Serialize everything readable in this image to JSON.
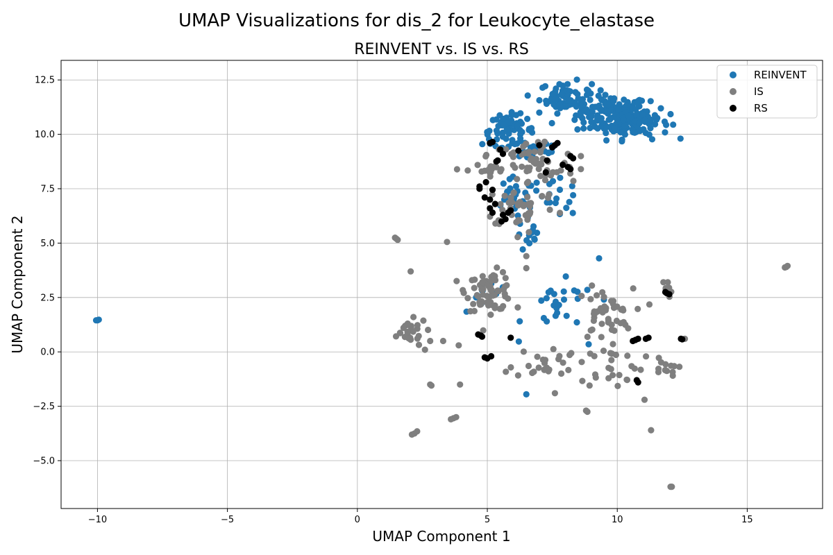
{
  "chart_data": {
    "type": "scatter",
    "suptitle": "UMAP Visualizations for dis_2 for Leukocyte_elastase",
    "title": "REINVENT vs. IS vs. RS",
    "xlabel": "UMAP Component 1",
    "ylabel": "UMAP Component 2",
    "xlim": [
      -11.4,
      17.9
    ],
    "ylim": [
      -7.2,
      13.4
    ],
    "xticks": [
      -10,
      -5,
      0,
      5,
      10,
      15
    ],
    "xtick_labels": [
      "−10",
      "−5",
      "0",
      "5",
      "10",
      "15"
    ],
    "yticks": [
      -5.0,
      -2.5,
      0.0,
      2.5,
      5.0,
      7.5,
      10.0,
      12.5
    ],
    "ytick_labels": [
      "−5.0",
      "−2.5",
      "0.0",
      "2.5",
      "5.0",
      "7.5",
      "10.0",
      "12.5"
    ],
    "grid": true,
    "legend_position": "top-right",
    "series": [
      {
        "name": "REINVENT",
        "color": "#1f77b4",
        "clusters": [
          {
            "cx": 9.8,
            "cy": 10.9,
            "sx": 0.7,
            "sy": 0.45,
            "n": 140
          },
          {
            "cx": 10.8,
            "cy": 10.6,
            "sx": 0.6,
            "sy": 0.4,
            "n": 80
          },
          {
            "cx": 8.0,
            "cy": 11.7,
            "sx": 0.5,
            "sy": 0.35,
            "n": 60
          },
          {
            "cx": 5.8,
            "cy": 10.2,
            "sx": 0.5,
            "sy": 0.35,
            "n": 60
          },
          {
            "cx": 6.8,
            "cy": 9.4,
            "sx": 0.6,
            "sy": 0.4,
            "n": 30
          },
          {
            "cx": 6.1,
            "cy": 7.0,
            "sx": 0.5,
            "sy": 0.5,
            "n": 30
          },
          {
            "cx": 6.6,
            "cy": 5.3,
            "sx": 0.25,
            "sy": 0.4,
            "n": 12
          },
          {
            "cx": 7.7,
            "cy": 7.0,
            "sx": 0.4,
            "sy": 0.4,
            "n": 15
          },
          {
            "cx": 7.8,
            "cy": 2.0,
            "sx": 0.7,
            "sy": 0.6,
            "n": 25
          },
          {
            "cx": 5.2,
            "cy": 2.9,
            "sx": 0.4,
            "sy": 0.4,
            "n": 10
          }
        ],
        "points": [
          [
            -10.0,
            1.45
          ],
          [
            -10.05,
            1.45
          ],
          [
            -9.95,
            1.48
          ],
          [
            9.3,
            4.3
          ],
          [
            6.5,
            -1.95
          ],
          [
            8.3,
            7.2
          ],
          [
            7.0,
            11.0
          ],
          [
            4.2,
            1.85
          ],
          [
            8.9,
            0.35
          ],
          [
            7.8,
            8.0
          ]
        ]
      },
      {
        "name": "IS",
        "color": "#7f7f7f",
        "clusters": [
          {
            "cx": 5.1,
            "cy": 2.8,
            "sx": 0.45,
            "sy": 0.45,
            "n": 70
          },
          {
            "cx": 9.5,
            "cy": 1.7,
            "sx": 0.55,
            "sy": 0.6,
            "n": 45
          },
          {
            "cx": 6.8,
            "cy": 8.5,
            "sx": 0.8,
            "sy": 0.7,
            "n": 55
          },
          {
            "cx": 6.3,
            "cy": 6.7,
            "sx": 0.7,
            "sy": 0.5,
            "n": 40
          },
          {
            "cx": 5.0,
            "cy": 8.3,
            "sx": 0.4,
            "sy": 0.4,
            "n": 15
          },
          {
            "cx": 7.2,
            "cy": -0.5,
            "sx": 0.6,
            "sy": 0.35,
            "n": 25
          },
          {
            "cx": 9.8,
            "cy": -0.6,
            "sx": 0.6,
            "sy": 0.5,
            "n": 25
          },
          {
            "cx": 1.9,
            "cy": 0.9,
            "sx": 0.4,
            "sy": 0.3,
            "n": 25
          },
          {
            "cx": 11.8,
            "cy": -0.8,
            "sx": 0.25,
            "sy": 0.3,
            "n": 12
          },
          {
            "cx": 11.9,
            "cy": 2.9,
            "sx": 0.1,
            "sy": 0.2,
            "n": 10
          }
        ],
        "points": [
          [
            1.45,
            5.25
          ],
          [
            1.5,
            5.2
          ],
          [
            1.55,
            5.15
          ],
          [
            3.45,
            5.05
          ],
          [
            2.05,
            3.7
          ],
          [
            2.2,
            -3.75
          ],
          [
            2.1,
            -3.8
          ],
          [
            2.3,
            -3.65
          ],
          [
            3.7,
            -3.05
          ],
          [
            3.8,
            -3.0
          ],
          [
            3.6,
            -3.1
          ],
          [
            3.95,
            -1.5
          ],
          [
            2.8,
            -1.5
          ],
          [
            2.85,
            -1.55
          ],
          [
            16.5,
            3.9
          ],
          [
            16.45,
            3.88
          ],
          [
            16.55,
            3.95
          ],
          [
            12.1,
            -6.2
          ],
          [
            12.05,
            -6.2
          ],
          [
            11.3,
            -3.6
          ],
          [
            11.05,
            -2.2
          ],
          [
            8.8,
            -2.7
          ],
          [
            8.85,
            -2.75
          ],
          [
            7.6,
            -1.9
          ],
          [
            3.3,
            0.5
          ],
          [
            2.8,
            0.5
          ],
          [
            3.9,
            0.3
          ],
          [
            2.6,
            0.1
          ],
          [
            12.6,
            0.6
          ],
          [
            6.5,
            3.85
          ],
          [
            6.5,
            4.4
          ],
          [
            8.6,
            8.4
          ],
          [
            8.6,
            9.0
          ],
          [
            6.6,
            5.5
          ]
        ]
      },
      {
        "name": "RS",
        "color": "#000000",
        "points": [
          [
            5.1,
            9.6
          ],
          [
            5.2,
            9.65
          ],
          [
            5.5,
            9.3
          ],
          [
            5.6,
            9.1
          ],
          [
            5.4,
            8.8
          ],
          [
            5.35,
            8.75
          ],
          [
            6.2,
            9.25
          ],
          [
            7.0,
            9.5
          ],
          [
            7.5,
            9.4
          ],
          [
            7.6,
            9.5
          ],
          [
            7.7,
            9.6
          ],
          [
            7.3,
            8.8
          ],
          [
            8.1,
            8.5
          ],
          [
            8.2,
            8.4
          ],
          [
            7.9,
            8.6
          ],
          [
            8.3,
            8.9
          ],
          [
            8.2,
            9.0
          ],
          [
            7.25,
            8.25
          ],
          [
            4.7,
            7.6
          ],
          [
            4.7,
            7.5
          ],
          [
            4.95,
            7.8
          ],
          [
            5.2,
            7.45
          ],
          [
            4.9,
            7.1
          ],
          [
            5.1,
            7.0
          ],
          [
            5.1,
            6.6
          ],
          [
            5.3,
            6.8
          ],
          [
            5.2,
            6.4
          ],
          [
            5.6,
            6.3
          ],
          [
            5.8,
            6.4
          ],
          [
            5.9,
            6.5
          ],
          [
            5.55,
            6.0
          ],
          [
            5.7,
            6.1
          ],
          [
            4.65,
            0.8
          ],
          [
            4.8,
            0.7
          ],
          [
            4.75,
            0.75
          ],
          [
            4.9,
            -0.25
          ],
          [
            5.0,
            -0.3
          ],
          [
            5.15,
            -0.2
          ],
          [
            5.9,
            0.65
          ],
          [
            10.6,
            0.5
          ],
          [
            10.7,
            0.55
          ],
          [
            10.8,
            0.6
          ],
          [
            11.1,
            0.6
          ],
          [
            11.2,
            0.65
          ],
          [
            10.8,
            -1.4
          ],
          [
            10.75,
            -1.3
          ],
          [
            11.9,
            2.7
          ],
          [
            12.0,
            2.65
          ],
          [
            11.85,
            2.75
          ],
          [
            12.5,
            0.58
          ],
          [
            12.45,
            0.6
          ]
        ]
      }
    ]
  }
}
